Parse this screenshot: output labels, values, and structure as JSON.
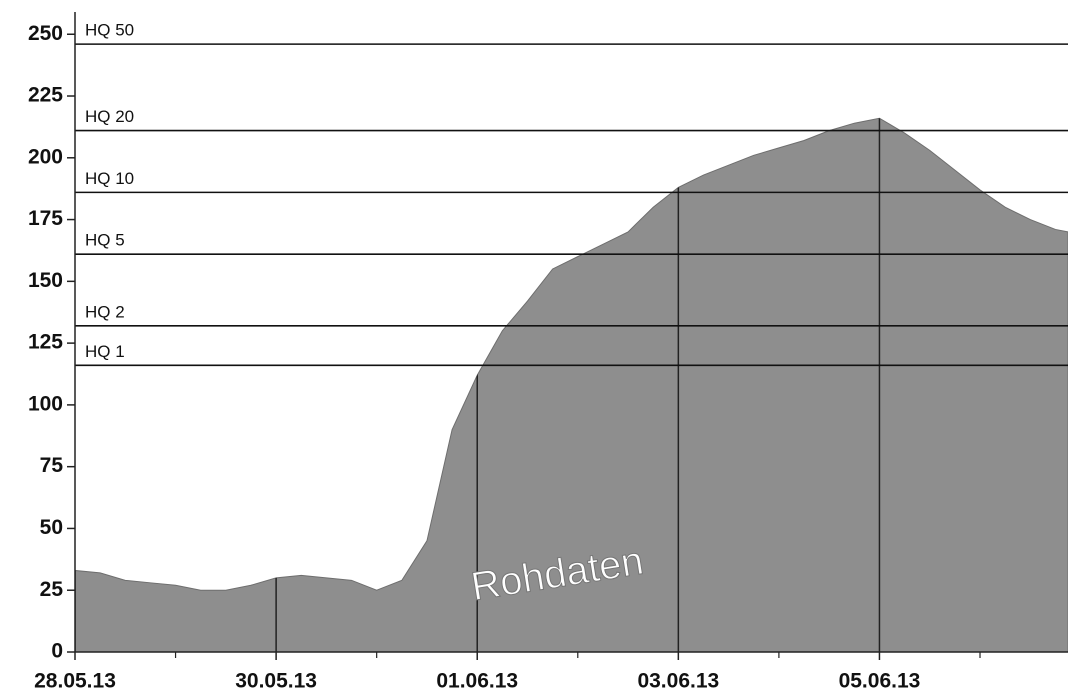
{
  "chart_data": {
    "type": "area",
    "color": "#8e8e8e",
    "x": [
      "28.05.13 00:00",
      "28.05.13 06:00",
      "28.05.13 12:00",
      "28.05.13 18:00",
      "29.05.13 00:00",
      "29.05.13 06:00",
      "29.05.13 12:00",
      "29.05.13 18:00",
      "30.05.13 00:00",
      "30.05.13 06:00",
      "30.05.13 12:00",
      "30.05.13 18:00",
      "31.05.13 00:00",
      "31.05.13 06:00",
      "31.05.13 12:00",
      "31.05.13 18:00",
      "01.06.13 00:00",
      "01.06.13 06:00",
      "01.06.13 12:00",
      "01.06.13 18:00",
      "02.06.13 00:00",
      "02.06.13 06:00",
      "02.06.13 12:00",
      "02.06.13 18:00",
      "03.06.13 00:00",
      "03.06.13 06:00",
      "03.06.13 12:00",
      "03.06.13 18:00",
      "04.06.13 00:00",
      "04.06.13 06:00",
      "04.06.13 12:00",
      "04.06.13 18:00",
      "05.06.13 00:00",
      "05.06.13 06:00",
      "05.06.13 12:00",
      "05.06.13 18:00",
      "06.06.13 00:00",
      "06.06.13 06:00",
      "06.06.13 12:00",
      "06.06.13 18:00",
      "06.06.13 21:00"
    ],
    "values": [
      33,
      32,
      29,
      28,
      27,
      25,
      25,
      27,
      30,
      31,
      30,
      29,
      25,
      29,
      45,
      90,
      112,
      130,
      142,
      155,
      160,
      165,
      170,
      180,
      188,
      193,
      197,
      201,
      204,
      207,
      211,
      214,
      216,
      210,
      203,
      195,
      187,
      180,
      175,
      171,
      170
    ],
    "xlim": [
      "28.05.13 00:00",
      "06.06.13 21:00"
    ],
    "xticks": [
      {
        "value": "28.05.13 00:00",
        "label": "28.05.13"
      },
      {
        "value": "30.05.13 00:00",
        "label": "30.05.13"
      },
      {
        "value": "01.06.13 00:00",
        "label": "01.06.13"
      },
      {
        "value": "03.06.13 00:00",
        "label": "03.06.13"
      },
      {
        "value": "05.06.13 00:00",
        "label": "05.06.13"
      }
    ],
    "xticks_minor": [
      "29.05.13 00:00",
      "31.05.13 00:00",
      "02.06.13 00:00",
      "04.06.13 00:00",
      "06.06.13 00:00"
    ],
    "ylim": [
      0,
      259
    ],
    "yticks": [
      0,
      25,
      50,
      75,
      100,
      125,
      150,
      175,
      200,
      225,
      250
    ],
    "hlines": [
      {
        "label": "HQ 50",
        "value": 246
      },
      {
        "label": "HQ 20",
        "value": 211
      },
      {
        "label": "HQ 10",
        "value": 186
      },
      {
        "label": "HQ 5",
        "value": 161
      },
      {
        "label": "HQ 2",
        "value": 132
      },
      {
        "label": "HQ 1",
        "value": 116
      }
    ],
    "annotation": "Rohdaten"
  }
}
